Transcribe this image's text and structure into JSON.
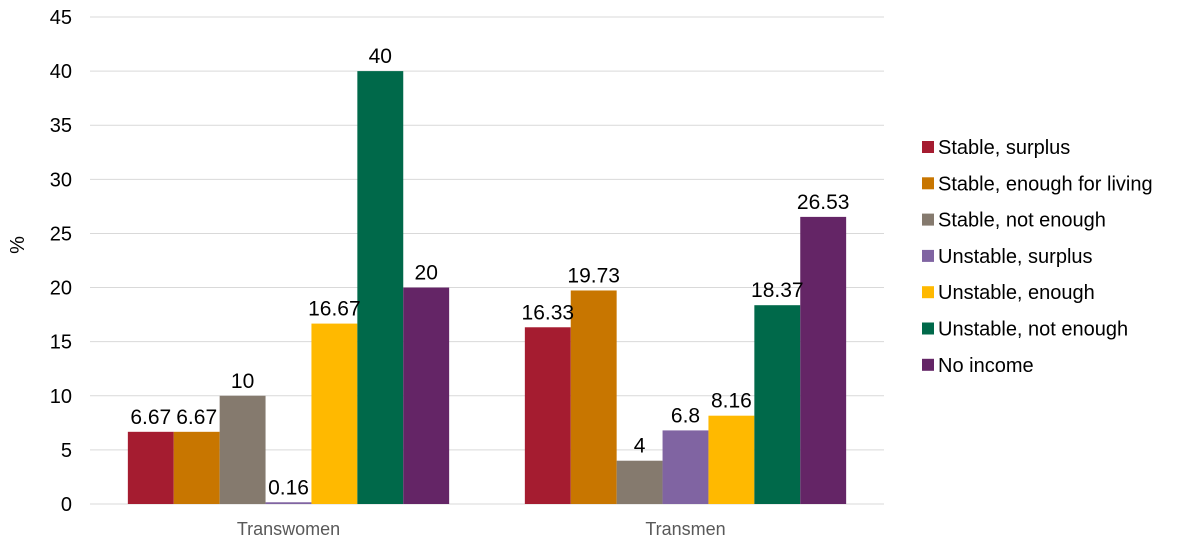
{
  "chart_data": {
    "type": "bar",
    "ylabel": "%",
    "ylim": [
      0,
      45
    ],
    "yticks": [
      0,
      5,
      10,
      15,
      20,
      25,
      30,
      35,
      40,
      45
    ],
    "grid": true,
    "legend_position": "right",
    "categories": [
      "Transwomen",
      "Transmen"
    ],
    "series": [
      {
        "name": "Stable, surplus",
        "color": "#A51C30",
        "values": [
          6.67,
          16.33
        ],
        "labels": [
          "6.67",
          "16.33"
        ]
      },
      {
        "name": "Stable, enough for living",
        "color": "#C87600",
        "values": [
          6.67,
          19.73
        ],
        "labels": [
          "6.67",
          "19.73"
        ]
      },
      {
        "name": "Stable, not enough",
        "color": "#857A6E",
        "values": [
          10,
          4
        ],
        "labels": [
          "10",
          "4"
        ]
      },
      {
        "name": "Unstable, surplus",
        "color": "#8064A2",
        "values": [
          0.16,
          6.8
        ],
        "labels": [
          "0.16",
          "6.8"
        ]
      },
      {
        "name": "Unstable, enough",
        "color": "#FFB900",
        "values": [
          16.67,
          8.16
        ],
        "labels": [
          "16.67",
          "8.16"
        ]
      },
      {
        "name": "Unstable, not enough",
        "color": "#00694A",
        "values": [
          40,
          18.37
        ],
        "labels": [
          "40",
          "18.37"
        ]
      },
      {
        "name": "No income",
        "color": "#642566",
        "values": [
          20,
          26.53
        ],
        "labels": [
          "20",
          "26.53"
        ]
      }
    ]
  }
}
